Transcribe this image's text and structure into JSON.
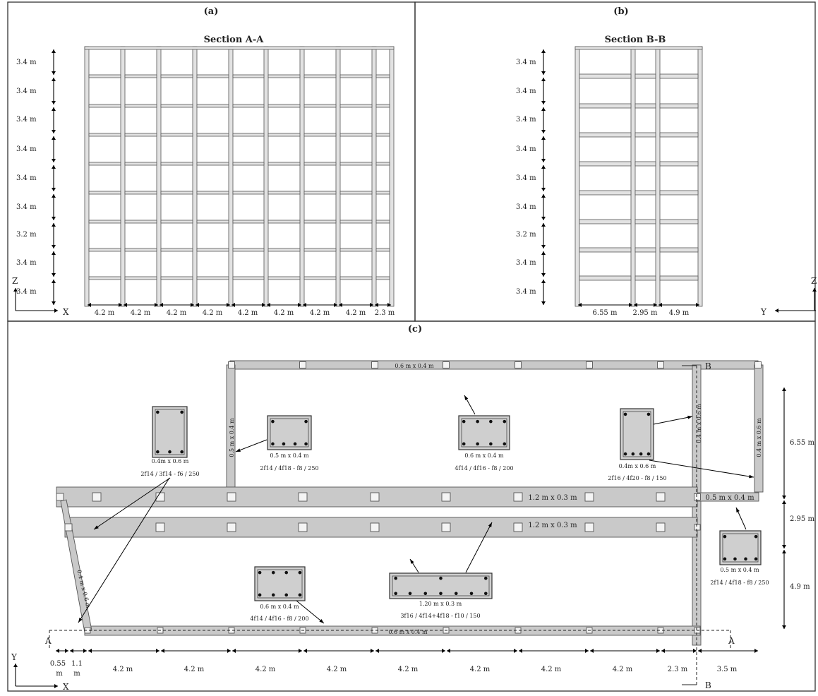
{
  "panels": {
    "a": {
      "label": "(a)",
      "title": "Section A-A",
      "story_heights": [
        "3.4 m",
        "3.4 m",
        "3.4 m",
        "3.4 m",
        "3.4 m",
        "3.4 m",
        "3.2 m",
        "3.4 m",
        "3.4 m"
      ],
      "bay_widths": [
        "4.2 m",
        "4.2 m",
        "4.2 m",
        "4.2 m",
        "4.2 m",
        "4.2 m",
        "4.2 m",
        "4.2 m",
        "2.3 m"
      ],
      "axes": {
        "vertical": "Z",
        "horizontal": "X"
      }
    },
    "b": {
      "label": "(b)",
      "title": "Section B-B",
      "story_heights": [
        "3.4 m",
        "3.4 m",
        "3.4 m",
        "3.4 m",
        "3.4 m",
        "3.4 m",
        "3.2 m",
        "3.4 m",
        "3.4 m"
      ],
      "bay_widths": [
        "6.55 m",
        "2.95 m",
        "4.9 m"
      ],
      "axes": {
        "vertical": "Z",
        "horizontal": "Y"
      }
    },
    "c": {
      "label": "(c)",
      "axes": {
        "vertical": "Y",
        "horizontal": "X"
      },
      "section_markers": {
        "a_left": "A",
        "a_right": "A",
        "b_top": "B",
        "b_bottom": "B"
      },
      "x_dims": [
        "4.2 m",
        "4.2 m",
        "4.2 m",
        "4.2 m",
        "4.2 m",
        "4.2 m",
        "4.2 m",
        "4.2 m",
        "2.3 m",
        "3.5 m"
      ],
      "x_dim_small_1": "0.55",
      "x_dim_small_1_unit": "m",
      "x_dim_small_2": "1.1",
      "x_dim_small_2_unit": "m",
      "y_dims": [
        "6.55 m",
        "2.95 m",
        "4.9 m"
      ],
      "member_labels": {
        "top_beam": "0.6 m x 0.4 m",
        "left_column": "0.5 m x 0.4 m",
        "right_column": "0.4 m x 0.6 m",
        "b_line_column": "0.4 m x 0.6 m",
        "wide_beam_1": "1.2 m x 0.3 m",
        "wide_beam_2": "1.2 m x 0.3 m",
        "short_beam": "0.5 m x 0.4 m",
        "diagonal": "0.4 m x 0.6 m",
        "bottom_beam": "0.6 m x 0.4 m"
      },
      "sections": [
        {
          "dim": "0.4m x 0.6 m",
          "rebar": "2f14 / 3f14 - f6 / 250"
        },
        {
          "dim": "0.5 m x 0.4 m",
          "rebar": "2f14 / 4f18 - f8 / 250"
        },
        {
          "dim": "0.6 m x 0.4 m",
          "rebar": "4f14 / 4f16 - f8 / 200"
        },
        {
          "dim": "0.4m x 0.6 m",
          "rebar": "2f16 / 4f20 - f8 / 150"
        },
        {
          "dim": "0.5 m x 0.4 m",
          "rebar": "2f14 / 4f18 - f8 / 250"
        },
        {
          "dim": "0.6 m x 0.4 m",
          "rebar": "4f14 / 4f16 - f8 / 200"
        },
        {
          "dim": "1.20 m x 0.3 m",
          "rebar": "3f16 / 4f14+4f18 - f10 / 150"
        }
      ]
    }
  }
}
